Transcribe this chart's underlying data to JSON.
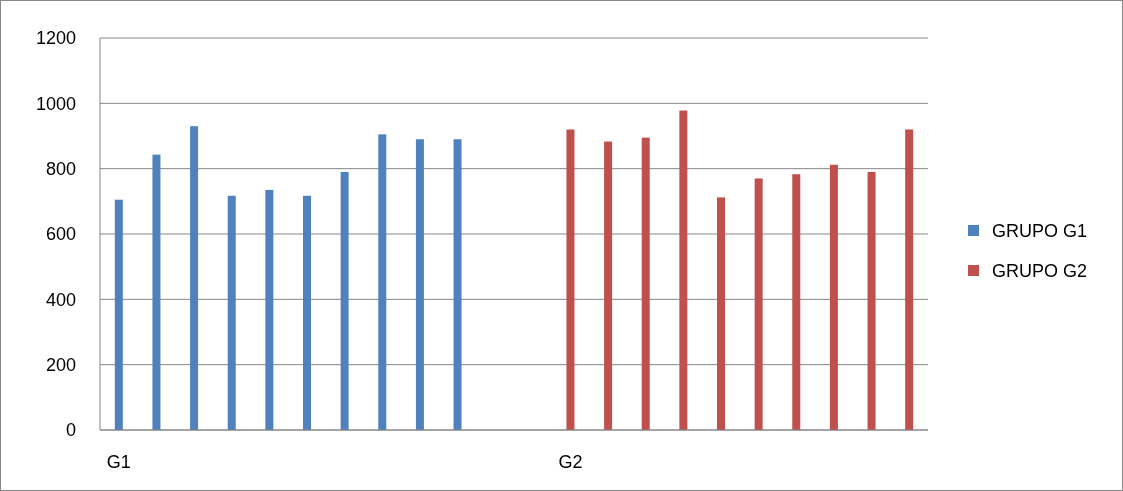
{
  "chart_data": {
    "type": "bar",
    "categories": [
      "G1",
      null,
      null,
      null,
      null,
      null,
      null,
      null,
      null,
      null,
      null,
      null,
      "G2",
      null,
      null,
      null,
      null,
      null,
      null,
      null,
      null,
      null
    ],
    "series": [
      {
        "name": "GRUPO G1",
        "color": "#4f81bd",
        "values": [
          705,
          843,
          930,
          717,
          735,
          717,
          790,
          905,
          890,
          890,
          null,
          null,
          null,
          null,
          null,
          null,
          null,
          null,
          null,
          null,
          null,
          null
        ]
      },
      {
        "name": "GRUPO G2",
        "color": "#c0504d",
        "values": [
          null,
          null,
          null,
          null,
          null,
          null,
          null,
          null,
          null,
          null,
          null,
          null,
          920,
          883,
          895,
          978,
          712,
          770,
          783,
          812,
          790,
          920
        ]
      }
    ],
    "ylim": [
      0,
      1200
    ],
    "yticks": [
      0,
      200,
      400,
      600,
      800,
      1000,
      1200
    ],
    "grid": "y",
    "legend": "right"
  }
}
